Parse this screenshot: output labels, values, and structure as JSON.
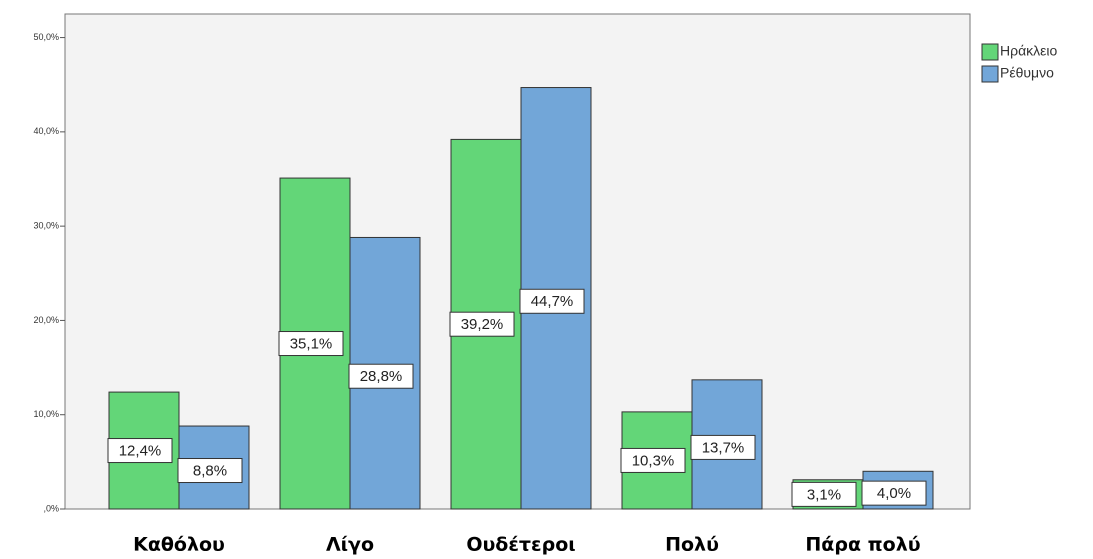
{
  "chart_data": {
    "type": "bar",
    "categories": [
      "Καθόλου",
      "Λίγο",
      "Ουδέτεροι",
      "Πολύ",
      "Πάρα πολύ"
    ],
    "series": [
      {
        "name": "Ηράκλειο",
        "color": "#63d678",
        "values": [
          12.4,
          35.1,
          39.2,
          10.3,
          3.1
        ],
        "value_labels": [
          "12,4%",
          "35,1%",
          "39,2%",
          "10,3%",
          "3,1%"
        ]
      },
      {
        "name": "Ρέθυμνο",
        "color": "#72a6d8",
        "values": [
          8.8,
          28.8,
          44.7,
          13.7,
          4.0
        ],
        "value_labels": [
          "8,8%",
          "28,8%",
          "44,7%",
          "13,7%",
          "4,0%"
        ]
      }
    ],
    "ylim": [
      0,
      52.5
    ],
    "yticks": [
      {
        "value": 0,
        "label": ",0%"
      },
      {
        "value": 10,
        "label": "10,0%"
      },
      {
        "value": 20,
        "label": "20,0%"
      },
      {
        "value": 30,
        "label": "30,0%"
      },
      {
        "value": 40,
        "label": "40,0%"
      },
      {
        "value": 50,
        "label": "50,0%"
      }
    ],
    "legend": "top-right"
  }
}
